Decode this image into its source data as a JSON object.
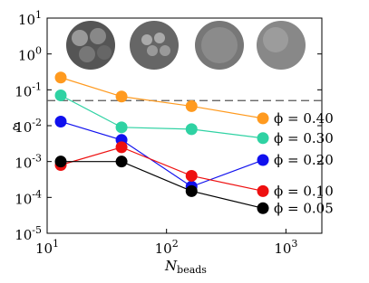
{
  "chart_data": {
    "type": "line",
    "xlabel": "N",
    "xlabel_sub": "beads",
    "ylabel": "ε",
    "x": [
      13,
      42,
      162,
      642
    ],
    "xscale": "log",
    "yscale": "log",
    "xlim": [
      10,
      2000
    ],
    "ylim": [
      1e-05,
      10
    ],
    "xticks": [
      {
        "value": 10,
        "label": "10^1"
      },
      {
        "value": 100,
        "label": "10^2"
      },
      {
        "value": 1000,
        "label": "10^3"
      }
    ],
    "yticks": [
      {
        "value": 1e-05,
        "label": "10^-5"
      },
      {
        "value": 0.0001,
        "label": "10^-4"
      },
      {
        "value": 0.001,
        "label": "10^-3"
      },
      {
        "value": 0.01,
        "label": "10^-2"
      },
      {
        "value": 0.1,
        "label": "10^-1"
      },
      {
        "value": 1,
        "label": "10^0"
      },
      {
        "value": 10,
        "label": "10^1"
      }
    ],
    "hline": 0.05,
    "series": [
      {
        "name": "ϕ = 0.40",
        "color": "#ff9a1f",
        "values": [
          0.22,
          0.065,
          0.035,
          0.016
        ]
      },
      {
        "name": "ϕ = 0.30",
        "color": "#2fd2a3",
        "values": [
          0.07,
          0.009,
          0.008,
          0.0045
        ]
      },
      {
        "name": "ϕ = 0.20",
        "color": "#1010ee",
        "values": [
          0.013,
          0.004,
          0.0002,
          0.0011
        ]
      },
      {
        "name": "ϕ = 0.10",
        "color": "#ee1010",
        "values": [
          0.0008,
          0.0025,
          0.0004,
          0.00015
        ]
      },
      {
        "name": "ϕ = 0.05",
        "color": "#000000",
        "values": [
          0.001,
          0.001,
          0.00015,
          5e-05
        ]
      }
    ]
  }
}
